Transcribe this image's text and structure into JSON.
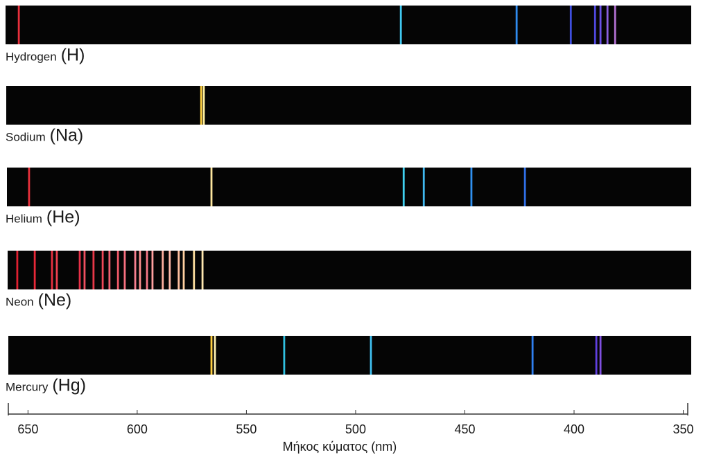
{
  "chart_data": {
    "type": "spectrum",
    "x_label": "Μήκος κύματος (nm)",
    "xlim": [
      659,
      347
    ],
    "xticks": [
      650,
      600,
      550,
      500,
      450,
      400,
      350
    ],
    "series": [
      {
        "name": "Hydrogen",
        "symbol": "(H)",
        "values": [
          654.2,
          479.3,
          426.3,
          401.5,
          390.4,
          387.9,
          384.7,
          381.2
        ],
        "colors": [
          "#e8303c",
          "#40c8f0",
          "#2f8cf0",
          "#3f4fe0",
          "#5048e0",
          "#6a50e8",
          "#8a60e0",
          "#b070d0"
        ]
      },
      {
        "name": "Sodium",
        "symbol": "(Na)",
        "values": [
          570.7,
          569.5
        ],
        "colors": [
          "#ffd040",
          "#fff0a0"
        ]
      },
      {
        "name": "Helium",
        "symbol": "(He)",
        "values": [
          649.5,
          566,
          478,
          468.8,
          447,
          422.5
        ],
        "colors": [
          "#e8303c",
          "#ffe8a0",
          "#40d0f0",
          "#40b8f0",
          "#3090f0",
          "#3070e8"
        ]
      },
      {
        "name": "Neon",
        "symbol": "(Ne)",
        "values": [
          654.9,
          646.9,
          639,
          636.8,
          626.3,
          624.1,
          620,
          615.8,
          612.7,
          608.8,
          605.7,
          600.9,
          598.7,
          595.5,
          593,
          588.3,
          585.1,
          581,
          578.7,
          574,
          570.1
        ],
        "colors": [
          "#e02030",
          "#e82838",
          "#e83040",
          "#f04050",
          "#e83048",
          "#f05060",
          "#e83848",
          "#f04858",
          "#f06070",
          "#f05868",
          "#f87080",
          "#f88090",
          "#ff9090",
          "#f87888",
          "#ffa0a0",
          "#ffb0a0",
          "#ffb8a8",
          "#ffc0a0",
          "#ffd0a0",
          "#ffe0a0",
          "#ffe8b0"
        ]
      },
      {
        "name": "Mercury",
        "symbol": "(Hg)",
        "values": [
          566,
          564.4,
          532.7,
          493,
          419,
          389.8,
          387.9
        ],
        "colors": [
          "#ffd040",
          "#fff0b0",
          "#30c0e0",
          "#40c0f0",
          "#3080f0",
          "#6040e0",
          "#8050e0"
        ]
      }
    ]
  }
}
